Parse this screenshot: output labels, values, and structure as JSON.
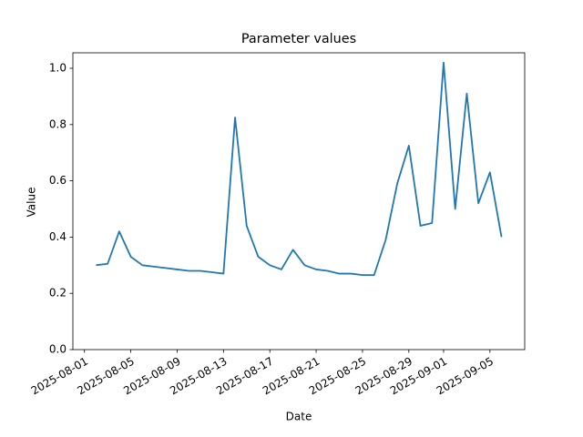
{
  "chart_data": {
    "type": "line",
    "title": "Parameter values",
    "x_label": "Date",
    "y_label": "Value",
    "x": [
      "2025-08-02",
      "2025-08-03",
      "2025-08-04",
      "2025-08-05",
      "2025-08-06",
      "2025-08-07",
      "2025-08-08",
      "2025-08-09",
      "2025-08-10",
      "2025-08-11",
      "2025-08-12",
      "2025-08-13",
      "2025-08-14",
      "2025-08-15",
      "2025-08-16",
      "2025-08-17",
      "2025-08-18",
      "2025-08-19",
      "2025-08-20",
      "2025-08-21",
      "2025-08-22",
      "2025-08-23",
      "2025-08-24",
      "2025-08-25",
      "2025-08-26",
      "2025-08-27",
      "2025-08-28",
      "2025-08-29",
      "2025-08-30",
      "2025-08-31",
      "2025-09-01",
      "2025-09-02",
      "2025-09-03",
      "2025-09-04",
      "2025-09-05",
      "2025-09-06"
    ],
    "values": [
      0.3,
      0.305,
      0.42,
      0.33,
      0.3,
      0.295,
      0.29,
      0.285,
      0.28,
      0.28,
      0.275,
      0.27,
      0.825,
      0.44,
      0.33,
      0.3,
      0.285,
      0.355,
      0.3,
      0.285,
      0.28,
      0.27,
      0.27,
      0.265,
      0.265,
      0.39,
      0.59,
      0.725,
      0.44,
      0.45,
      1.02,
      0.5,
      0.91,
      0.52,
      0.63,
      0.4
    ],
    "color": "#1f77b4",
    "xlim": [
      "2025-07-31",
      "2025-09-08"
    ],
    "xticks": [
      "2025-08-01",
      "2025-08-05",
      "2025-08-09",
      "2025-08-13",
      "2025-08-17",
      "2025-08-21",
      "2025-08-25",
      "2025-08-29",
      "2025-09-01",
      "2025-09-05"
    ],
    "ylim": [
      0,
      1.055
    ],
    "yticks": [
      {
        "value": 0,
        "label": "0.0"
      },
      0.2,
      0.4,
      0.6,
      0.8,
      {
        "value": 1,
        "label": "1.0"
      }
    ],
    "grid": false
  }
}
